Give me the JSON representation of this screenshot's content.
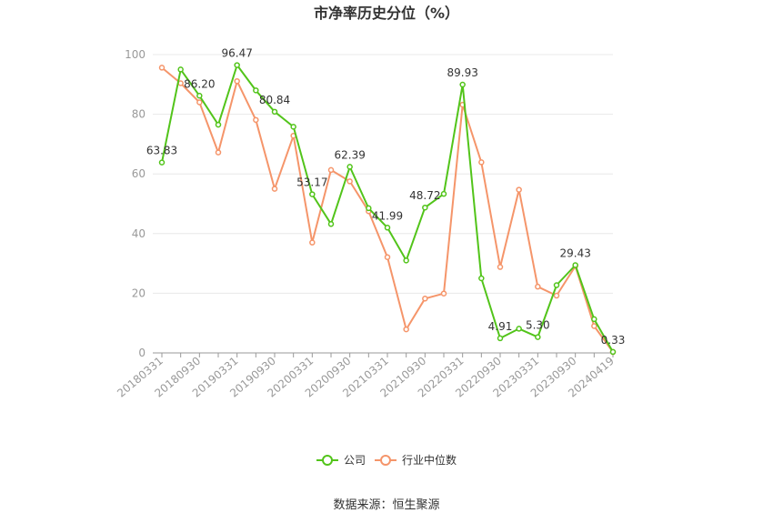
{
  "chart_data": {
    "type": "line",
    "title": "市净率历史分位（%）",
    "source": "数据来源：恒生聚源",
    "ylim": [
      0,
      100
    ],
    "y_ticks": [
      0,
      20,
      40,
      60,
      80,
      100
    ],
    "x_tick_labels": [
      "20180331",
      "20180930",
      "20190331",
      "20190930",
      "20200331",
      "20200930",
      "20210331",
      "20210930",
      "20220331",
      "20220930",
      "20230331",
      "20230930",
      "20240419"
    ],
    "grid": true,
    "legend_position": "bottom",
    "x": [
      "20180331",
      "20180630",
      "20180930",
      "20181231",
      "20190331",
      "20190630",
      "20190930",
      "20191231",
      "20200331",
      "20200630",
      "20200930",
      "20201231",
      "20210331",
      "20210630",
      "20210930",
      "20211231",
      "20220331",
      "20220630",
      "20220930",
      "20221231",
      "20230331",
      "20230630",
      "20230930",
      "20231231",
      "20240419"
    ],
    "series": [
      {
        "name": "公司",
        "color": "#52c41a",
        "values": [
          63.83,
          95.0,
          86.2,
          76.5,
          96.47,
          88.0,
          80.84,
          75.8,
          53.17,
          43.2,
          62.39,
          48.5,
          41.99,
          31.0,
          48.72,
          53.3,
          89.93,
          25.0,
          4.91,
          8.1,
          5.3,
          22.7,
          29.43,
          11.3,
          0.33
        ]
      },
      {
        "name": "行业中位数",
        "color": "#f5956a",
        "values": [
          95.6,
          90.4,
          84.0,
          67.2,
          91.1,
          78.1,
          55.0,
          72.8,
          37.0,
          61.3,
          57.5,
          47.5,
          32.1,
          7.9,
          18.2,
          19.9,
          83.2,
          63.9,
          28.8,
          54.7,
          22.2,
          19.2,
          29.1,
          9.0,
          0.3
        ]
      }
    ],
    "data_labels": [
      {
        "series": 0,
        "index": 0,
        "text": "63.83"
      },
      {
        "series": 0,
        "index": 2,
        "text": "86.20"
      },
      {
        "series": 0,
        "index": 4,
        "text": "96.47"
      },
      {
        "series": 0,
        "index": 6,
        "text": "80.84"
      },
      {
        "series": 0,
        "index": 8,
        "text": "53.17"
      },
      {
        "series": 0,
        "index": 10,
        "text": "62.39"
      },
      {
        "series": 0,
        "index": 12,
        "text": "41.99"
      },
      {
        "series": 0,
        "index": 14,
        "text": "48.72"
      },
      {
        "series": 0,
        "index": 16,
        "text": "89.93"
      },
      {
        "series": 0,
        "index": 18,
        "text": "4.91"
      },
      {
        "series": 0,
        "index": 20,
        "text": "5.30"
      },
      {
        "series": 0,
        "index": 22,
        "text": "29.43"
      },
      {
        "series": 0,
        "index": 24,
        "text": "0.33"
      }
    ]
  }
}
